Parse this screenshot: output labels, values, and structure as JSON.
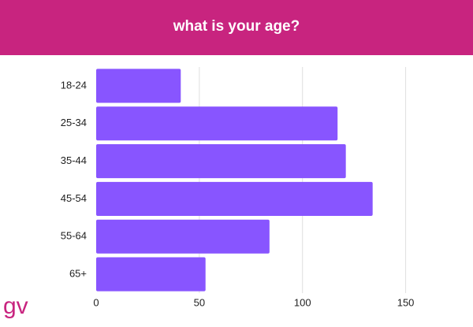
{
  "chart_data": {
    "type": "bar",
    "orientation": "horizontal",
    "title": "what is your age?",
    "categories": [
      "18-24",
      "25-34",
      "35-44",
      "45-54",
      "55-64",
      "65+"
    ],
    "values": [
      41,
      117,
      121,
      134,
      84,
      53
    ],
    "color": "#8855ff",
    "xlim": [
      0,
      175
    ],
    "xticks": [
      0,
      50,
      100,
      150
    ],
    "grid": true
  },
  "logo": "gv"
}
